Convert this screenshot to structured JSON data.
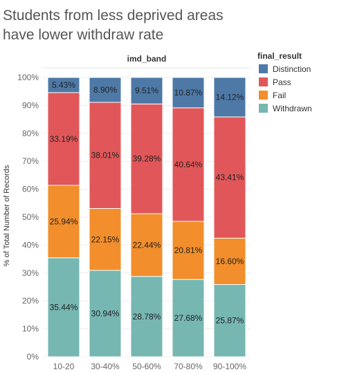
{
  "chart_data": {
    "type": "bar",
    "stacked": true,
    "title": "Students from less deprived areas have lower withdraw rate",
    "title_lines": [
      "Students from less deprived areas",
      "have lower withdraw rate"
    ],
    "column_header": "imd_band",
    "ylabel": "% of Total Number of Records",
    "ylim": [
      0,
      100
    ],
    "yticks": [
      "0%",
      "10%",
      "20%",
      "30%",
      "40%",
      "50%",
      "60%",
      "70%",
      "80%",
      "90%",
      "100%"
    ],
    "categories": [
      "10-20",
      "30-40%",
      "50-60%",
      "70-80%",
      "90-100%"
    ],
    "legend_title": "final_result",
    "legend_position": "right",
    "series": [
      {
        "name": "Withdrawn",
        "color": "#76b7b2",
        "values": [
          35.44,
          30.94,
          28.78,
          27.68,
          25.87
        ],
        "labels": [
          "35.44%",
          "30.94%",
          "28.78%",
          "27.68%",
          "25.87%"
        ]
      },
      {
        "name": "Fail",
        "color": "#f28e2b",
        "values": [
          25.94,
          22.15,
          22.44,
          20.81,
          16.6
        ],
        "labels": [
          "25.94%",
          "22.15%",
          "22.44%",
          "20.81%",
          "16.60%"
        ]
      },
      {
        "name": "Pass",
        "color": "#e15759",
        "values": [
          33.19,
          38.01,
          39.28,
          40.64,
          43.41
        ],
        "labels": [
          "33.19%",
          "38.01%",
          "39.28%",
          "40.64%",
          "43.41%"
        ]
      },
      {
        "name": "Distinction",
        "color": "#4e79a7",
        "values": [
          5.43,
          8.9,
          9.51,
          10.87,
          14.12
        ],
        "labels": [
          "5.43%",
          "8.90%",
          "9.51%",
          "10.87%",
          "14.12%"
        ]
      }
    ],
    "legend_order": [
      "Distinction",
      "Pass",
      "Fail",
      "Withdrawn"
    ]
  }
}
